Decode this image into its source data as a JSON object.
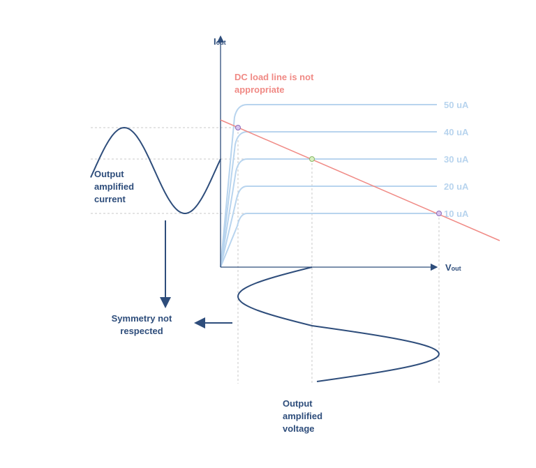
{
  "axes": {
    "y": {
      "symbol": "I",
      "subscript": "out"
    },
    "x": {
      "symbol": "V",
      "subscript": "out"
    }
  },
  "load_line_note": [
    "DC load line is not",
    "appropriate"
  ],
  "curves": [
    "50 uA",
    "40 uA",
    "30 uA",
    "20 uA",
    "10 uA"
  ],
  "current_label": [
    "Output",
    "amplified",
    "current"
  ],
  "symmetry_note": [
    "Symmetry not",
    "respected"
  ],
  "voltage_label": [
    "Output",
    "amplified",
    "voltage"
  ]
}
